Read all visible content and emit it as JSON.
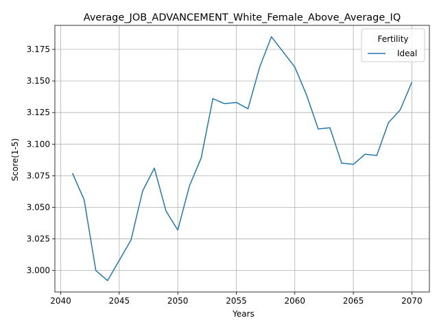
{
  "chart_data": {
    "type": "line",
    "title": "Average_JOB_ADVANCEMENT_White_Female_Above_Average_IQ",
    "xlabel": "Years",
    "ylabel": "Score(1-5)",
    "xlim": [
      2039.5,
      2071.5
    ],
    "ylim": [
      2.983,
      3.194
    ],
    "x_ticks": [
      2040,
      2045,
      2050,
      2055,
      2060,
      2065,
      2070
    ],
    "y_ticks": [
      3.0,
      3.025,
      3.05,
      3.075,
      3.1,
      3.125,
      3.15,
      3.175
    ],
    "y_tick_labels": [
      "3.000",
      "3.025",
      "3.050",
      "3.075",
      "3.100",
      "3.125",
      "3.150",
      "3.175"
    ],
    "grid": true,
    "legend": {
      "title": "Fertility",
      "placement": "top-right"
    },
    "series": [
      {
        "name": "Ideal",
        "color": "#1f77b4",
        "x": [
          2041,
          2042,
          2043,
          2044,
          2045,
          2046,
          2047,
          2048,
          2049,
          2050,
          2051,
          2052,
          2053,
          2054,
          2055,
          2056,
          2057,
          2058,
          2059,
          2060,
          2061,
          2062,
          2063,
          2064,
          2065,
          2066,
          2067,
          2068,
          2069,
          2070
        ],
        "y": [
          3.077,
          3.056,
          3.0,
          2.992,
          3.008,
          3.024,
          3.063,
          3.081,
          3.047,
          3.032,
          3.067,
          3.089,
          3.136,
          3.132,
          3.133,
          3.128,
          3.161,
          3.185,
          3.173,
          3.161,
          3.139,
          3.112,
          3.113,
          3.085,
          3.084,
          3.092,
          3.091,
          3.117,
          3.127,
          3.149
        ]
      }
    ]
  }
}
